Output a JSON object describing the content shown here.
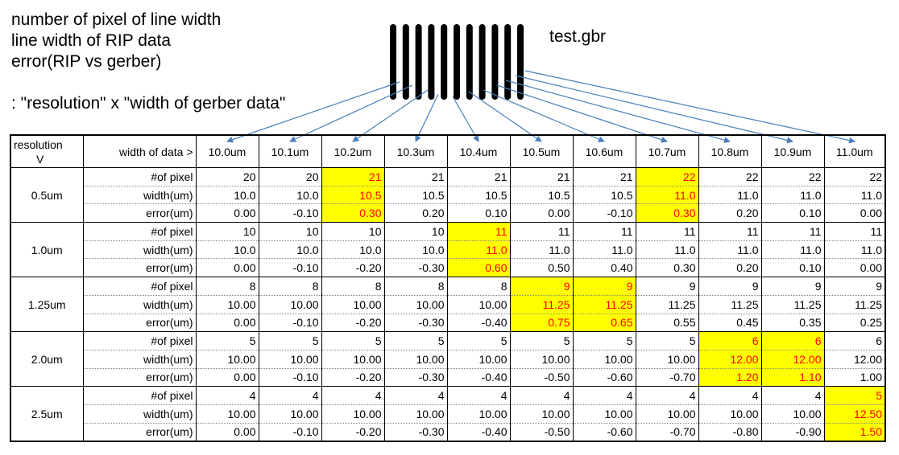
{
  "notes": [
    "number of pixel of line width",
    "line width of RIP data",
    "error(RIP vs gerber)",
    ": \"resolution\" x \"width of gerber data\""
  ],
  "file_label": "test.gbr",
  "table": {
    "corner_line1": "resolution",
    "corner_line2": "V",
    "data_header_label": "width of data >",
    "columns": [
      "10.0um",
      "10.1um",
      "10.2um",
      "10.3um",
      "10.4um",
      "10.5um",
      "10.6um",
      "10.7um",
      "10.8um",
      "10.9um",
      "11.0um"
    ],
    "row_labels": [
      "#of pixel",
      "width(um)",
      "error(um)"
    ],
    "groups": [
      {
        "resolution": "0.5um",
        "pixels": [
          "20",
          "20",
          "21",
          "21",
          "21",
          "21",
          "21",
          "22",
          "22",
          "22",
          "22"
        ],
        "widths": [
          "10.0",
          "10.0",
          "10.5",
          "10.5",
          "10.5",
          "10.5",
          "10.5",
          "11.0",
          "11.0",
          "11.0",
          "11.0"
        ],
        "errors": [
          "0.00",
          "-0.10",
          "0.30",
          "0.20",
          "0.10",
          "0.00",
          "-0.10",
          "0.30",
          "0.20",
          "0.10",
          "0.00"
        ],
        "highlight_columns": [
          2,
          7
        ]
      },
      {
        "resolution": "1.0um",
        "pixels": [
          "10",
          "10",
          "10",
          "10",
          "11",
          "11",
          "11",
          "11",
          "11",
          "11",
          "11"
        ],
        "widths": [
          "10.0",
          "10.0",
          "10.0",
          "10.0",
          "11.0",
          "11.0",
          "11.0",
          "11.0",
          "11.0",
          "11.0",
          "11.0"
        ],
        "errors": [
          "0.00",
          "-0.10",
          "-0.20",
          "-0.30",
          "0.60",
          "0.50",
          "0.40",
          "0.30",
          "0.20",
          "0.10",
          "0.00"
        ],
        "highlight_columns": [
          4
        ]
      },
      {
        "resolution": "1.25um",
        "pixels": [
          "8",
          "8",
          "8",
          "8",
          "8",
          "9",
          "9",
          "9",
          "9",
          "9",
          "9"
        ],
        "widths": [
          "10.00",
          "10.00",
          "10.00",
          "10.00",
          "10.00",
          "11.25",
          "11.25",
          "11.25",
          "11.25",
          "11.25",
          "11.25"
        ],
        "errors": [
          "0.00",
          "-0.10",
          "-0.20",
          "-0.30",
          "-0.40",
          "0.75",
          "0.65",
          "0.55",
          "0.45",
          "0.35",
          "0.25"
        ],
        "highlight_columns": [
          5,
          6
        ]
      },
      {
        "resolution": "2.0um",
        "pixels": [
          "5",
          "5",
          "5",
          "5",
          "5",
          "5",
          "5",
          "5",
          "6",
          "6",
          "6"
        ],
        "widths": [
          "10.00",
          "10.00",
          "10.00",
          "10.00",
          "10.00",
          "10.00",
          "10.00",
          "10.00",
          "12.00",
          "12.00",
          "12.00"
        ],
        "errors": [
          "0.00",
          "-0.10",
          "-0.20",
          "-0.30",
          "-0.40",
          "-0.50",
          "-0.60",
          "-0.70",
          "1.20",
          "1.10",
          "1.00"
        ],
        "highlight_columns": [
          8,
          9
        ]
      },
      {
        "resolution": "2.5um",
        "pixels": [
          "4",
          "4",
          "4",
          "4",
          "4",
          "4",
          "4",
          "4",
          "4",
          "4",
          "5"
        ],
        "widths": [
          "10.00",
          "10.00",
          "10.00",
          "10.00",
          "10.00",
          "10.00",
          "10.00",
          "10.00",
          "10.00",
          "10.00",
          "12.50"
        ],
        "errors": [
          "0.00",
          "-0.10",
          "-0.20",
          "-0.30",
          "-0.40",
          "-0.50",
          "-0.60",
          "-0.70",
          "-0.80",
          "-0.90",
          "1.50"
        ],
        "highlight_columns": [
          10
        ]
      }
    ]
  },
  "colors": {
    "highlight_fill": "#ffff00",
    "highlight_text": "#ff0000",
    "arrow": "#4a7ebb"
  }
}
